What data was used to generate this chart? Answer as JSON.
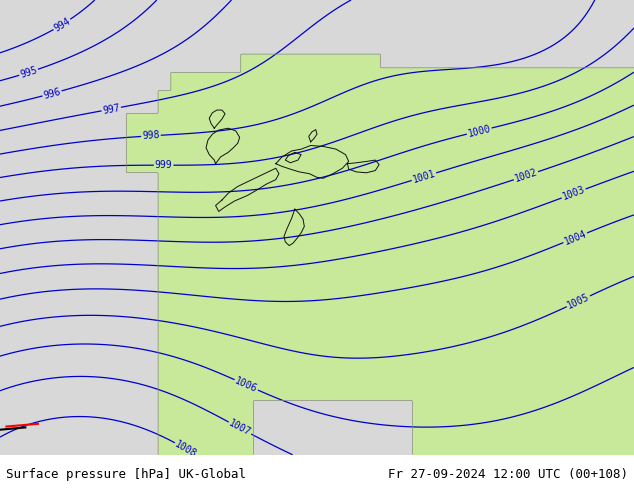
{
  "title_left": "Surface pressure [hPa] UK-Global",
  "title_right": "Fr 27-09-2024 12:00 UTC (00+108)",
  "background_land": "#c8e89a",
  "background_sea": "#d8d8d8",
  "isobar_color": "#0000cc",
  "border_color": "#111111",
  "border_lw": 0.7,
  "coastline_color": "#888888",
  "coastline_lw": 0.4,
  "text_color": "#0000cc",
  "title_color": "#000000",
  "fig_width": 6.34,
  "fig_height": 4.9,
  "dpi": 100,
  "font_size_title": 9,
  "font_size_labels": 7,
  "isobar_linewidth": 0.9,
  "pressure_min": 994,
  "pressure_max": 1011,
  "pressure_step": 1
}
